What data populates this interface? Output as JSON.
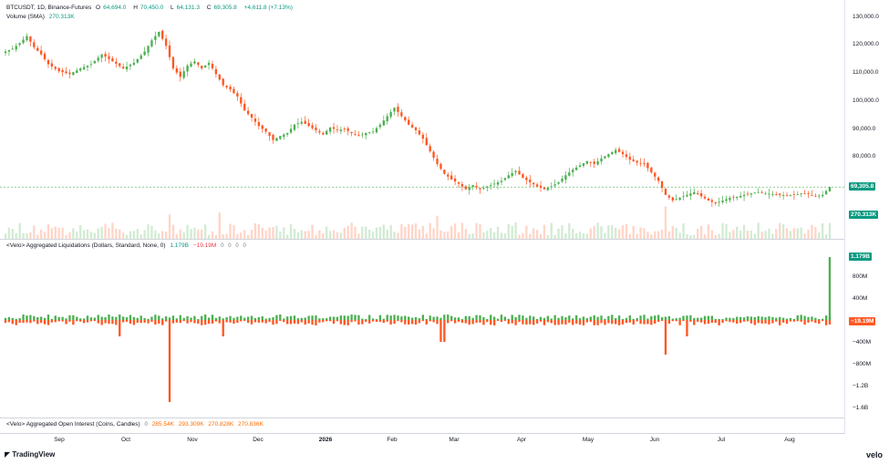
{
  "header": {
    "symbol": "BTCUSDT, 1D, Binance-Futures",
    "o_label": "O",
    "o_value": "64,694.0",
    "h_label": "H",
    "h_value": "70,450.0",
    "l_label": "L",
    "l_value": "64,131.3",
    "c_label": "C",
    "c_value": "69,305.8",
    "change": "+4,611.8 (+7.13%)",
    "volume_label": "Volume (SMA)",
    "volume_value": "270.313K"
  },
  "liq_legend": {
    "title": "<Velo> Aggregated Liquidations (Dollars, Standard, None, 0)",
    "v1": "1.179B",
    "v2": "−19.19M",
    "v3": "0",
    "v4": "0",
    "v5": "0",
    "v6": "0"
  },
  "oi_legend": {
    "title": "<Velo> Aggregated Open Interest (Coins, Candles)",
    "v0": "0",
    "v1": "285.54K",
    "v2": "293.309K",
    "v3": "270.828K",
    "v4": "270.836K"
  },
  "price_axis": [
    "130,000.0",
    "120,000.0",
    "110,000.0",
    "100,000.0",
    "90,000.0",
    "80,000.0",
    "70,000.0"
  ],
  "price_tag": "69,305.8",
  "volume_tag": "270.313K",
  "liq_axis": [
    "800M",
    "400M",
    "−400M",
    "−800M",
    "−1.2B",
    "−1.6B"
  ],
  "liq_tag_pos": "1.179B",
  "liq_tag_neg": "−19.19M",
  "x_labels": [
    "Sep",
    "Oct",
    "Nov",
    "Dec",
    "2026",
    "Feb",
    "Mar",
    "Apr",
    "May",
    "Jun",
    "Jul",
    "Aug"
  ],
  "brand_left": "TradingView",
  "brand_right": "velo",
  "colors": {
    "up": "#4caf50",
    "down": "#ff5722",
    "up_tag": "#089981",
    "grid": "#e0e3eb"
  },
  "chart_data": {
    "type": "candlestick",
    "series_close_path": [
      [
        0,
        117500
      ],
      [
        2,
        118500
      ],
      [
        4,
        120500
      ],
      [
        6,
        123000
      ],
      [
        8,
        119000
      ],
      [
        10,
        116500
      ],
      [
        12,
        113000
      ],
      [
        15,
        110500
      ],
      [
        18,
        109500
      ],
      [
        21,
        111500
      ],
      [
        24,
        113000
      ],
      [
        27,
        116500
      ],
      [
        30,
        114000
      ],
      [
        33,
        111500
      ],
      [
        36,
        113500
      ],
      [
        39,
        117500
      ],
      [
        41,
        121500
      ],
      [
        43,
        124500
      ],
      [
        45,
        119500
      ],
      [
        47,
        111500
      ],
      [
        49,
        108500
      ],
      [
        51,
        112500
      ],
      [
        53,
        114000
      ],
      [
        55,
        111500
      ],
      [
        57,
        113500
      ],
      [
        59,
        109500
      ],
      [
        61,
        105500
      ],
      [
        63,
        104000
      ],
      [
        65,
        101500
      ],
      [
        67,
        96500
      ],
      [
        69,
        94000
      ],
      [
        71,
        91000
      ],
      [
        73,
        89000
      ],
      [
        75,
        86000
      ],
      [
        77,
        87500
      ],
      [
        79,
        88500
      ],
      [
        81,
        91500
      ],
      [
        83,
        92500
      ],
      [
        85,
        91000
      ],
      [
        87,
        89500
      ],
      [
        89,
        88000
      ],
      [
        91,
        90500
      ],
      [
        93,
        89500
      ],
      [
        95,
        90000
      ],
      [
        97,
        88500
      ],
      [
        99,
        87500
      ],
      [
        101,
        88500
      ],
      [
        103,
        89000
      ],
      [
        105,
        91500
      ],
      [
        107,
        94500
      ],
      [
        109,
        97500
      ],
      [
        111,
        94500
      ],
      [
        113,
        91500
      ],
      [
        115,
        89500
      ],
      [
        117,
        86500
      ],
      [
        119,
        82000
      ],
      [
        121,
        77500
      ],
      [
        123,
        74000
      ],
      [
        125,
        72000
      ],
      [
        127,
        70500
      ],
      [
        129,
        68500
      ],
      [
        131,
        70000
      ],
      [
        133,
        68500
      ],
      [
        135,
        69500
      ],
      [
        137,
        70500
      ],
      [
        139,
        71500
      ],
      [
        141,
        73500
      ],
      [
        143,
        75000
      ],
      [
        145,
        72500
      ],
      [
        147,
        71000
      ],
      [
        149,
        69500
      ],
      [
        151,
        68500
      ],
      [
        153,
        69500
      ],
      [
        155,
        71000
      ],
      [
        157,
        73500
      ],
      [
        159,
        75500
      ],
      [
        161,
        77000
      ],
      [
        163,
        78500
      ],
      [
        165,
        77500
      ],
      [
        167,
        79500
      ],
      [
        169,
        81000
      ],
      [
        171,
        82500
      ],
      [
        173,
        81000
      ],
      [
        175,
        79000
      ],
      [
        177,
        78000
      ],
      [
        179,
        77500
      ],
      [
        181,
        74500
      ],
      [
        183,
        71500
      ],
      [
        185,
        66500
      ],
      [
        187,
        64500
      ],
      [
        189,
        65500
      ],
      [
        191,
        66500
      ],
      [
        193,
        67500
      ],
      [
        195,
        66000
      ],
      [
        197,
        64500
      ],
      [
        199,
        63500
      ],
      [
        201,
        64500
      ],
      [
        203,
        65500
      ],
      [
        205,
        65800
      ],
      [
        207,
        66500
      ],
      [
        209,
        67000
      ],
      [
        211,
        67500
      ],
      [
        213,
        67000
      ],
      [
        215,
        66800
      ],
      [
        217,
        66500
      ],
      [
        219,
        66300
      ],
      [
        221,
        66500
      ],
      [
        223,
        67000
      ],
      [
        225,
        66800
      ],
      [
        227,
        66000
      ],
      [
        229,
        66500
      ],
      [
        231,
        69305
      ]
    ],
    "price_ylim": [
      60000,
      133000
    ],
    "liquidations": {
      "spike_pos": 1179000000,
      "spike_neg_oct": -1400000000,
      "spike_neg_jun": -600000000,
      "last": -19190000
    },
    "ylim_liq": [
      -1700000000,
      1300000000
    ]
  }
}
